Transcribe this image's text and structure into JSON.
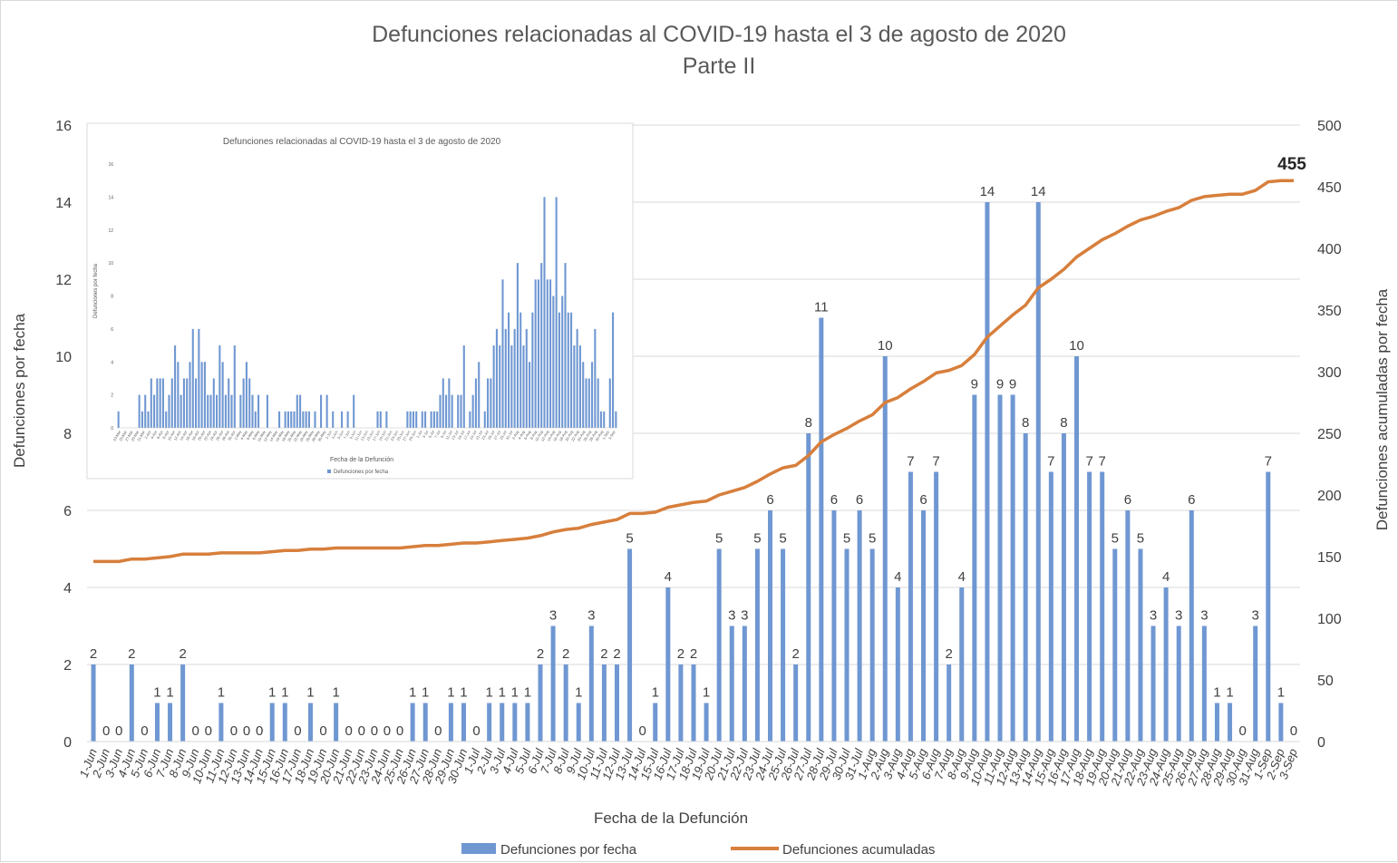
{
  "chart_data": {
    "type": "bar+line",
    "title": "Defunciones relacionadas al COVID-19 hasta el 3 de agosto de 2020",
    "subtitle": "Parte II",
    "xlabel": "Fecha de la Defunción",
    "ylabel": "Defunciones por fecha",
    "y2label": "Defunciones acumuladas por fecha",
    "ylim": [
      0,
      16
    ],
    "y_ticks": [
      0,
      2,
      4,
      6,
      8,
      10,
      12,
      14,
      16
    ],
    "y2lim": [
      0,
      500
    ],
    "y2_ticks": [
      0,
      50,
      100,
      150,
      200,
      250,
      300,
      350,
      400,
      450,
      500
    ],
    "grid": "horizontal",
    "legend_position": "bottom",
    "final_label": "455",
    "colors": {
      "bars": "#6f97d2",
      "line": "#d77f3c",
      "grid": "#d9d9d9",
      "text": "#404040"
    },
    "categories": [
      "1-Jun",
      "2-Jun",
      "3-Jun",
      "4-Jun",
      "5-Jun",
      "6-Jun",
      "7-Jun",
      "8-Jun",
      "9-Jun",
      "10-Jun",
      "11-Jun",
      "12-Jun",
      "13-Jun",
      "14-Jun",
      "15-Jun",
      "16-Jun",
      "17-Jun",
      "18-Jun",
      "19-Jun",
      "20-Jun",
      "21-Jun",
      "22-Jun",
      "23-Jun",
      "24-Jun",
      "25-Jun",
      "26-Jun",
      "27-Jun",
      "28-Jun",
      "29-Jun",
      "30-Jun",
      "1-Jul",
      "2-Jul",
      "3-Jul",
      "4-Jul",
      "5-Jul",
      "6-Jul",
      "7-Jul",
      "8-Jul",
      "9-Jul",
      "10-Jul",
      "11-Jul",
      "12-Jul",
      "13-Jul",
      "14-Jul",
      "15-Jul",
      "16-Jul",
      "17-Jul",
      "18-Jul",
      "19-Jul",
      "20-Jul",
      "21-Jul",
      "22-Jul",
      "23-Jul",
      "24-Jul",
      "25-Jul",
      "26-Jul",
      "27-Jul",
      "28-Jul",
      "29-Jul",
      "30-Jul",
      "31-Jul",
      "1-Aug",
      "2-Aug",
      "3-Aug",
      "4-Aug",
      "5-Aug",
      "6-Aug",
      "7-Aug",
      "8-Aug",
      "9-Aug",
      "10-Aug",
      "11-Aug",
      "12-Aug",
      "13-Aug",
      "14-Aug",
      "15-Aug",
      "16-Aug",
      "17-Aug",
      "18-Aug",
      "19-Aug",
      "20-Aug",
      "21-Aug",
      "22-Aug",
      "23-Aug",
      "24-Aug",
      "25-Aug",
      "26-Aug",
      "27-Aug",
      "28-Aug",
      "29-Aug",
      "30-Aug",
      "31-Aug",
      "1-Sep",
      "2-Sep",
      "3-Sep"
    ],
    "series": [
      {
        "name": "Defunciones por fecha",
        "type": "bar",
        "axis": "left",
        "values": [
          2,
          0,
          0,
          2,
          0,
          1,
          1,
          2,
          0,
          0,
          1,
          0,
          0,
          0,
          1,
          1,
          0,
          1,
          0,
          1,
          0,
          0,
          0,
          0,
          0,
          1,
          1,
          0,
          1,
          1,
          0,
          1,
          1,
          1,
          1,
          2,
          3,
          2,
          1,
          3,
          2,
          2,
          5,
          0,
          1,
          4,
          2,
          2,
          1,
          5,
          3,
          3,
          5,
          6,
          5,
          2,
          8,
          11,
          6,
          5,
          6,
          5,
          10,
          4,
          7,
          6,
          7,
          2,
          4,
          9,
          14,
          9,
          9,
          8,
          14,
          7,
          8,
          10,
          7,
          7,
          5,
          6,
          5,
          3,
          4,
          3,
          6,
          3,
          1,
          1,
          0,
          3,
          7,
          1,
          0
        ]
      },
      {
        "name": "Defunciones acumuladas",
        "type": "line",
        "axis": "right",
        "values": [
          146,
          146,
          146,
          148,
          148,
          149,
          150,
          152,
          152,
          152,
          153,
          153,
          153,
          153,
          154,
          155,
          155,
          156,
          156,
          157,
          157,
          157,
          157,
          157,
          157,
          158,
          159,
          159,
          160,
          161,
          161,
          162,
          163,
          164,
          165,
          167,
          170,
          172,
          173,
          176,
          178,
          180,
          185,
          185,
          186,
          190,
          192,
          194,
          195,
          200,
          203,
          206,
          211,
          217,
          222,
          224,
          232,
          243,
          249,
          254,
          260,
          265,
          275,
          279,
          286,
          292,
          299,
          301,
          305,
          314,
          328,
          337,
          346,
          354,
          368,
          375,
          383,
          393,
          400,
          407,
          412,
          418,
          423,
          426,
          430,
          433,
          439,
          442,
          443,
          444,
          444,
          447,
          454,
          455,
          455
        ]
      }
    ]
  },
  "inset": {
    "title": "Defunciones relacionadas al COVID-19 hasta el 3 de agosto de 2020",
    "xlabel": "Fecha de la Defunción",
    "ylabel": "Defunciones por fecha",
    "legend": "Defunciones por fecha",
    "y_ticks": [
      "0",
      "2",
      "4",
      "6",
      "8",
      "10",
      "12",
      "14",
      "16"
    ],
    "values": [
      1,
      0,
      0,
      0,
      0,
      0,
      0,
      2,
      1,
      2,
      1,
      3,
      2,
      3,
      3,
      3,
      1,
      2,
      3,
      5,
      4,
      2,
      3,
      3,
      4,
      6,
      3,
      6,
      4,
      4,
      2,
      2,
      3,
      2,
      5,
      4,
      2,
      3,
      2,
      5,
      0,
      2,
      3,
      4,
      3,
      2,
      1,
      2,
      0,
      0,
      2,
      0,
      0,
      0,
      1,
      0,
      1,
      1,
      1,
      1,
      2,
      2,
      1,
      1,
      1,
      0,
      1,
      0,
      2,
      0,
      2,
      0,
      1,
      0,
      0,
      1,
      0,
      1,
      0,
      2,
      0,
      0,
      0,
      0,
      0,
      0,
      0,
      1,
      1,
      0,
      1,
      0,
      0,
      0,
      0,
      0,
      0,
      1,
      1,
      1,
      1,
      0,
      1,
      1,
      0,
      1,
      1,
      1,
      2,
      3,
      2,
      3,
      2,
      0,
      2,
      2,
      5,
      0,
      1,
      2,
      3,
      4,
      0,
      1,
      3,
      3,
      5,
      6,
      5,
      9,
      6,
      7,
      5,
      6,
      10,
      7,
      5,
      6,
      4,
      7,
      9,
      9,
      10,
      14,
      9,
      9,
      8,
      14,
      7,
      8,
      10,
      7,
      7,
      5,
      6,
      5,
      4,
      3,
      3,
      4,
      6,
      3,
      1,
      1,
      0,
      3,
      7,
      1
    ],
    "tick_labels": [
      "23-Mar",
      "25-Mar",
      "27-Mar",
      "29-Mar",
      "31-Mar",
      "2-Apr",
      "4-Apr",
      "6-Apr",
      "8-Apr",
      "10-Apr",
      "12-Apr",
      "14-Apr",
      "16-Apr",
      "18-Apr",
      "20-Apr",
      "22-Apr",
      "24-Apr",
      "26-Apr",
      "28-Apr",
      "30-Apr",
      "2-May",
      "4-May",
      "6-May",
      "8-May",
      "10-May",
      "12-May",
      "14-May",
      "16-May",
      "18-May",
      "20-May",
      "22-May",
      "24-May",
      "26-May",
      "28-May",
      "30-May",
      "1-Jun",
      "3-Jun",
      "5-Jun",
      "7-Jun",
      "9-Jun",
      "11-Jun",
      "13-Jun",
      "15-Jun",
      "17-Jun",
      "19-Jun",
      "21-Jun",
      "23-Jun",
      "25-Jun",
      "27-Jun",
      "29-Jun",
      "1-Jul",
      "3-Jul",
      "5-Jul",
      "7-Jul",
      "9-Jul",
      "11-Jul",
      "13-Jul",
      "15-Jul",
      "17-Jul",
      "19-Jul",
      "21-Jul",
      "23-Jul",
      "25-Jul",
      "27-Jul",
      "29-Jul",
      "31-Jul",
      "2-Aug",
      "4-Aug",
      "6-Aug",
      "8-Aug",
      "10-Aug",
      "12-Aug",
      "14-Aug",
      "16-Aug",
      "18-Aug",
      "20-Aug",
      "22-Aug",
      "24-Aug",
      "26-Aug",
      "28-Aug",
      "30-Aug",
      "1-Sep",
      "3-Sep"
    ]
  }
}
